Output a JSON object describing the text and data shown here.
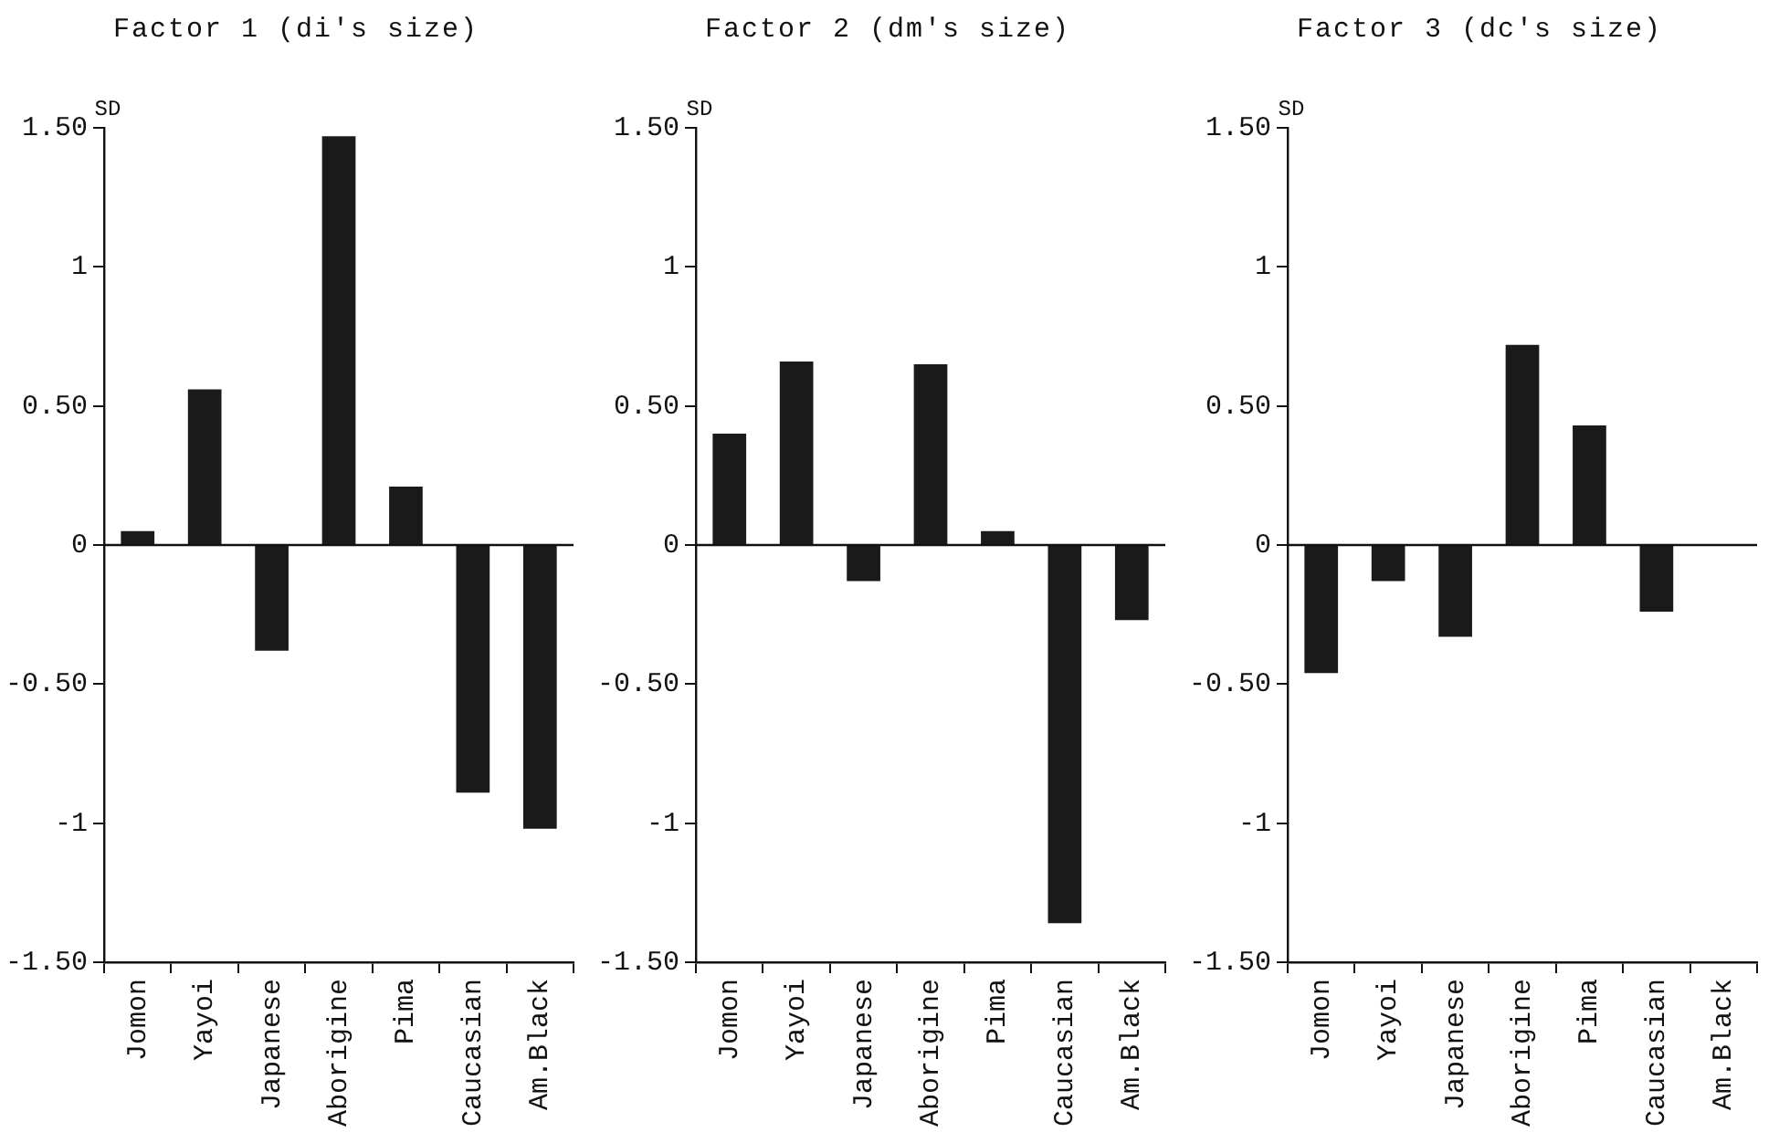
{
  "chart_data": [
    {
      "type": "bar",
      "title": "Factor 1 (di's size)",
      "ylabel": "SD",
      "categories": [
        "Jomon",
        "Yayoi",
        "Japanese",
        "Aborigine",
        "Pima",
        "Caucasian",
        "Am.Black"
      ],
      "values": [
        0.05,
        0.56,
        -0.38,
        1.47,
        0.21,
        -0.89,
        -1.02
      ],
      "ref_lines": [
        {
          "axis": "y",
          "value": 0
        }
      ],
      "color": "#1a1a1a",
      "ylim": [
        -1.5,
        1.5
      ],
      "yticks": [
        {
          "value": -1.5,
          "label": "-1.50"
        },
        -1,
        {
          "value": -0.5,
          "label": "-0.50"
        },
        0,
        {
          "value": 0.5,
          "label": "0.50"
        },
        1,
        {
          "value": 1.5,
          "label": "1.50"
        }
      ],
      "grid": false,
      "legend": false
    },
    {
      "type": "bar",
      "title": "Factor 2 (dm's size)",
      "ylabel": "SD",
      "categories": [
        "Jomon",
        "Yayoi",
        "Japanese",
        "Aborigine",
        "Pima",
        "Caucasian",
        "Am.Black"
      ],
      "values": [
        0.4,
        0.66,
        -0.13,
        0.65,
        0.05,
        -1.36,
        -0.27
      ],
      "ref_lines": [
        {
          "axis": "y",
          "value": 0
        }
      ],
      "color": "#1a1a1a",
      "ylim": [
        -1.5,
        1.5
      ],
      "yticks": [
        {
          "value": -1.5,
          "label": "-1.50"
        },
        -1,
        {
          "value": -0.5,
          "label": "-0.50"
        },
        0,
        {
          "value": 0.5,
          "label": "0.50"
        },
        1,
        {
          "value": 1.5,
          "label": "1.50"
        }
      ],
      "grid": false,
      "legend": false
    },
    {
      "type": "bar",
      "title": "Factor 3 (dc's size)",
      "ylabel": "SD",
      "categories": [
        "Jomon",
        "Yayoi",
        "Japanese",
        "Aborigine",
        "Pima",
        "Caucasian",
        "Am.Black"
      ],
      "values": [
        -0.46,
        -0.13,
        -0.33,
        0.72,
        0.43,
        -0.24,
        0
      ],
      "ref_lines": [
        {
          "axis": "y",
          "value": 0
        }
      ],
      "color": "#1a1a1a",
      "ylim": [
        -1.5,
        1.5
      ],
      "yticks": [
        {
          "value": -1.5,
          "label": "-1.50"
        },
        -1,
        {
          "value": -0.5,
          "label": "-0.50"
        },
        0,
        {
          "value": 0.5,
          "label": "0.50"
        },
        1,
        {
          "value": 1.5,
          "label": "1.50"
        }
      ],
      "grid": false,
      "legend": false
    }
  ]
}
